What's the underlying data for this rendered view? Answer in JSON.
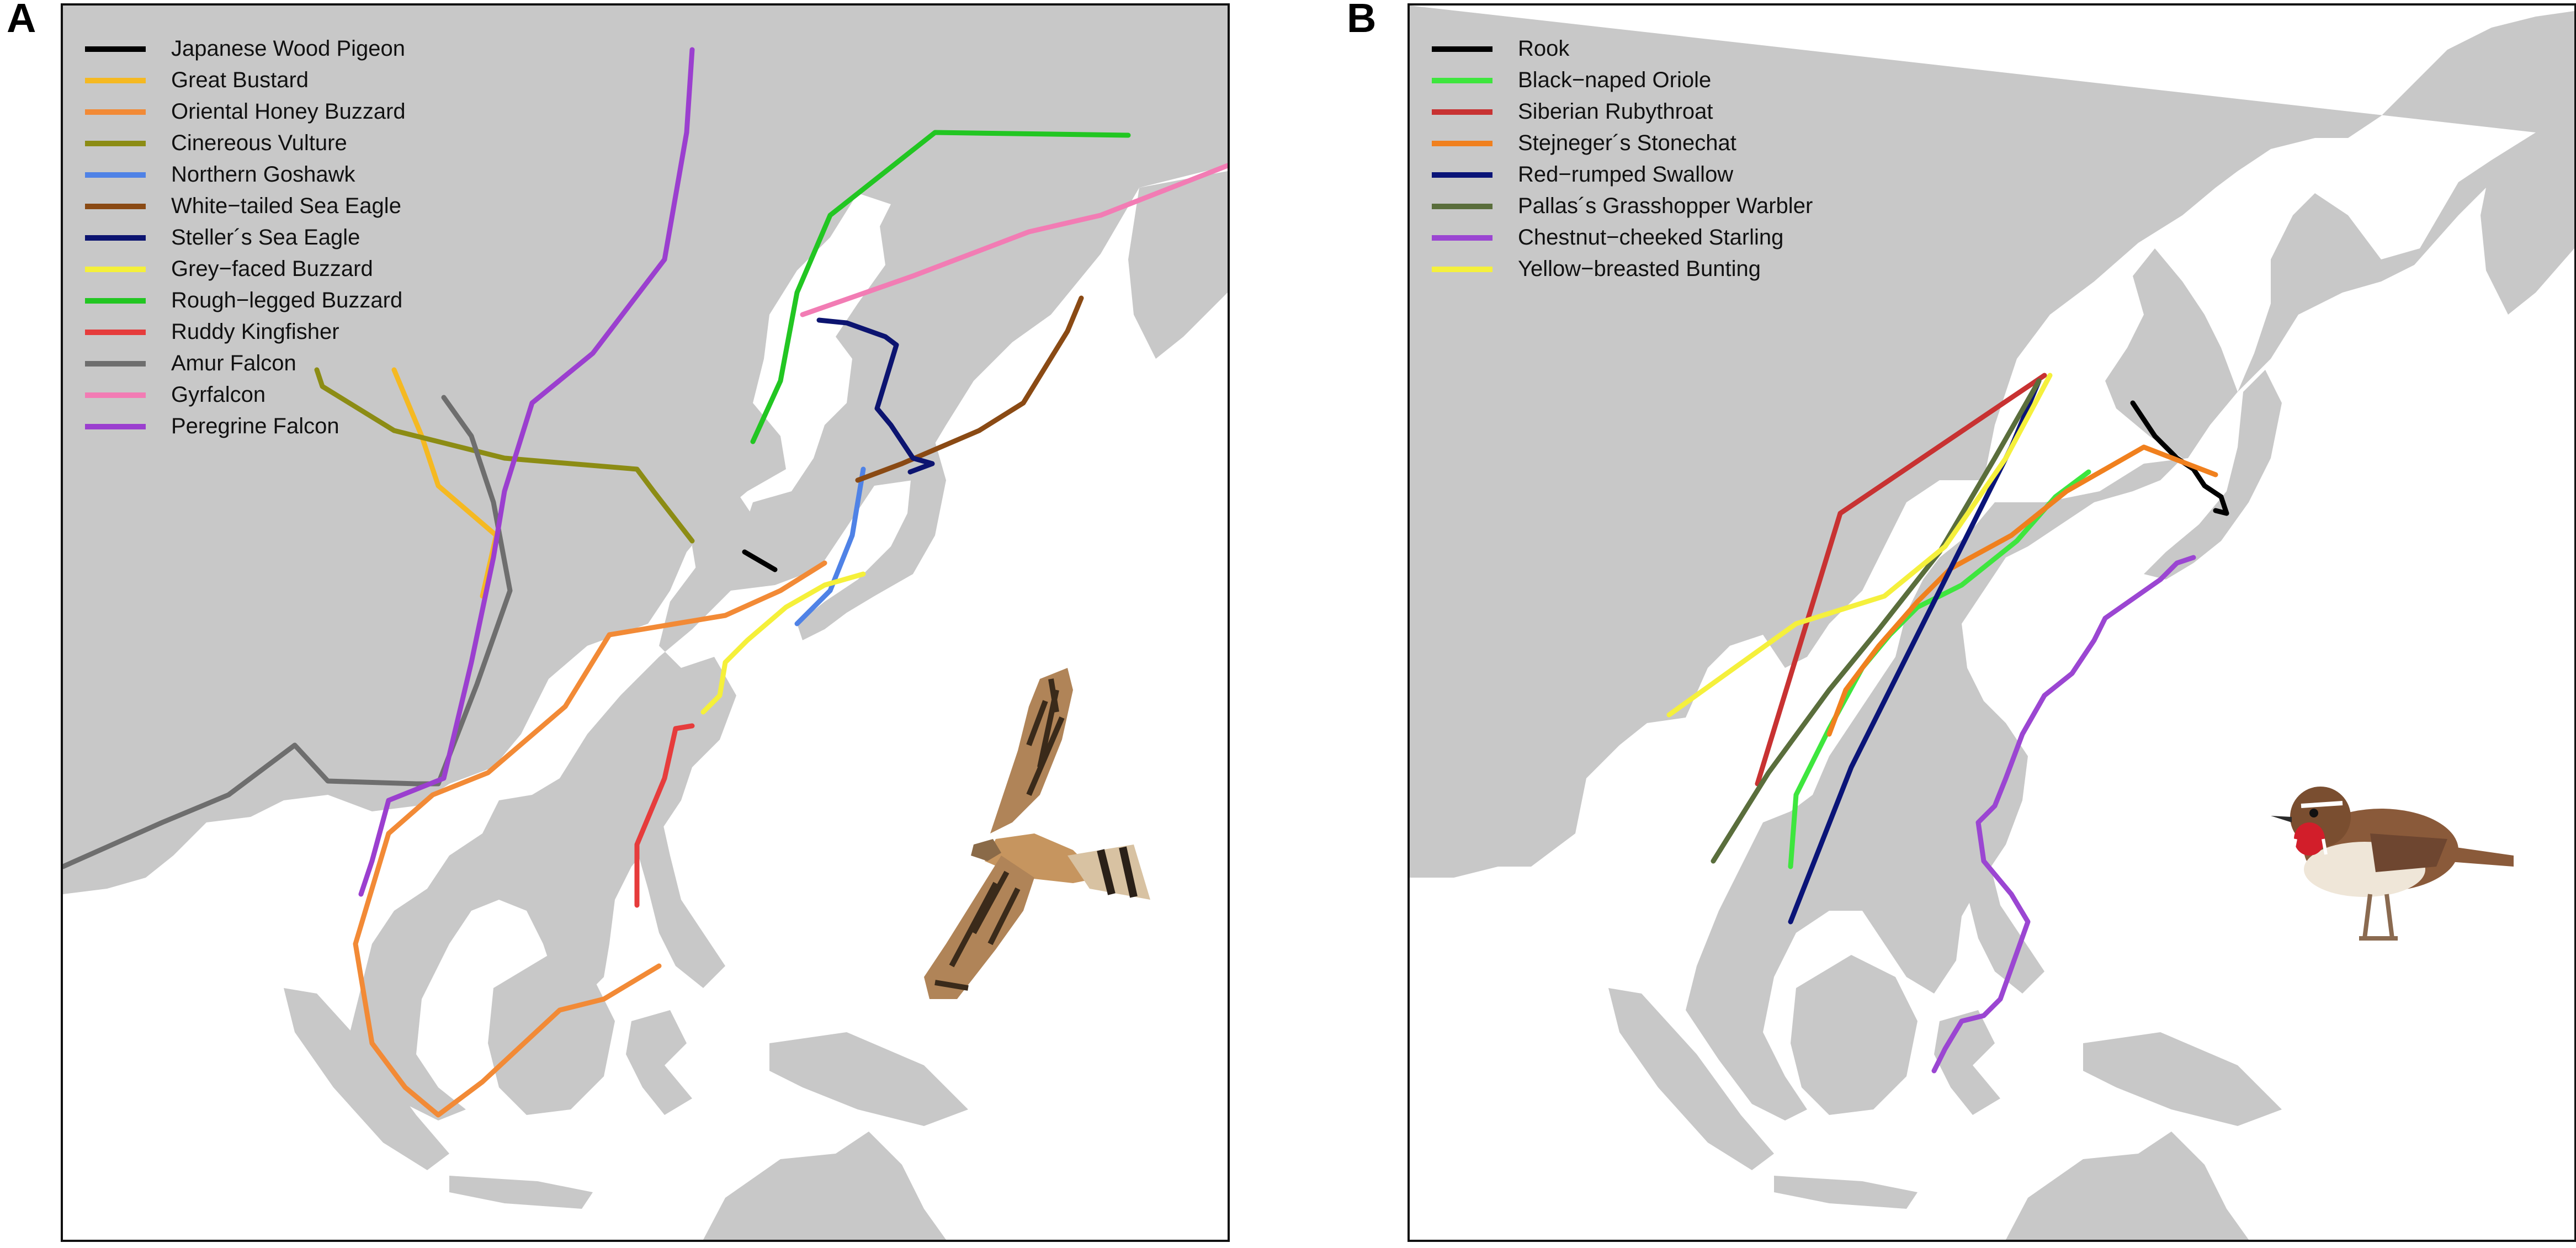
{
  "panels": [
    {
      "letter": "A",
      "legend": [
        {
          "label": "Japanese Wood Pigeon",
          "color": "#000000"
        },
        {
          "label": "Great Bustard",
          "color": "#f5b922"
        },
        {
          "label": "Oriental Honey Buzzard",
          "color": "#f28a36"
        },
        {
          "label": "Cinereous Vulture",
          "color": "#8c8c14"
        },
        {
          "label": "Northern Goshawk",
          "color": "#4f82e6"
        },
        {
          "label": "White−tailed Sea Eagle",
          "color": "#8a4a14"
        },
        {
          "label": "Steller´s Sea Eagle",
          "color": "#0c1470"
        },
        {
          "label": "Grey−faced Buzzard",
          "color": "#f5f03a"
        },
        {
          "label": "Rough−legged Buzzard",
          "color": "#22c622"
        },
        {
          "label": "Ruddy Kingfisher",
          "color": "#e63c3c"
        },
        {
          "label": "Amur Falcon",
          "color": "#6e6e6e"
        },
        {
          "label": "Gyrfalcon",
          "color": "#f27cb4"
        },
        {
          "label": "Peregrine Falcon",
          "color": "#9b3fcf"
        }
      ],
      "illustration": "oriental-honey-buzzard-illustration"
    },
    {
      "letter": "B",
      "legend": [
        {
          "label": "Rook",
          "color": "#000000"
        },
        {
          "label": "Black−naped Oriole",
          "color": "#3ee63e"
        },
        {
          "label": "Siberian Rubythroat",
          "color": "#c83232"
        },
        {
          "label": "Stejneger´s Stonechat",
          "color": "#f0801e"
        },
        {
          "label": "Red−rumped Swallow",
          "color": "#0a1478"
        },
        {
          "label": "Pallas´s Grasshopper Warbler",
          "color": "#5a6e3c"
        },
        {
          "label": "Chestnut−cheeked Starling",
          "color": "#9b46d2"
        },
        {
          "label": "Yellow−breasted Bunting",
          "color": "#f5f03c"
        }
      ],
      "illustration": "siberian-rubythroat-illustration"
    }
  ],
  "colors": {
    "land": "#c8c8c8",
    "sea": "#ffffff",
    "border": "#111111"
  }
}
